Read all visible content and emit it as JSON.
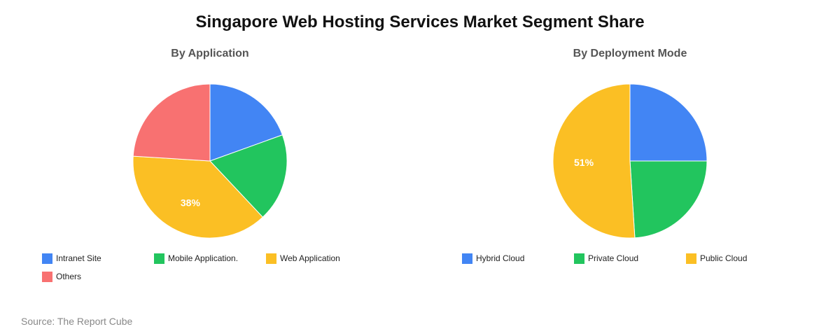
{
  "title": "Singapore Web Hosting Services Market Segment Share",
  "source": "Source: The Report Cube",
  "chart_data": [
    {
      "type": "pie",
      "title": "By Application",
      "categories": [
        "Intranet Site",
        "Mobile Application.",
        "Web Application",
        "Others"
      ],
      "values": [
        19.5,
        18.5,
        38,
        24
      ],
      "colors": [
        "#4285f4",
        "#22c55e",
        "#fbbf24",
        "#f87171"
      ],
      "slice_labels": [
        "",
        "",
        "38%",
        ""
      ],
      "legend_position": "bottom"
    },
    {
      "type": "pie",
      "title": "By Deployment Mode",
      "categories": [
        "Hybrid Cloud",
        "Private Cloud",
        "Public Cloud"
      ],
      "values": [
        25,
        24,
        51
      ],
      "colors": [
        "#4285f4",
        "#22c55e",
        "#fbbf24"
      ],
      "slice_labels": [
        "",
        "",
        "51%"
      ],
      "legend_position": "bottom"
    }
  ]
}
